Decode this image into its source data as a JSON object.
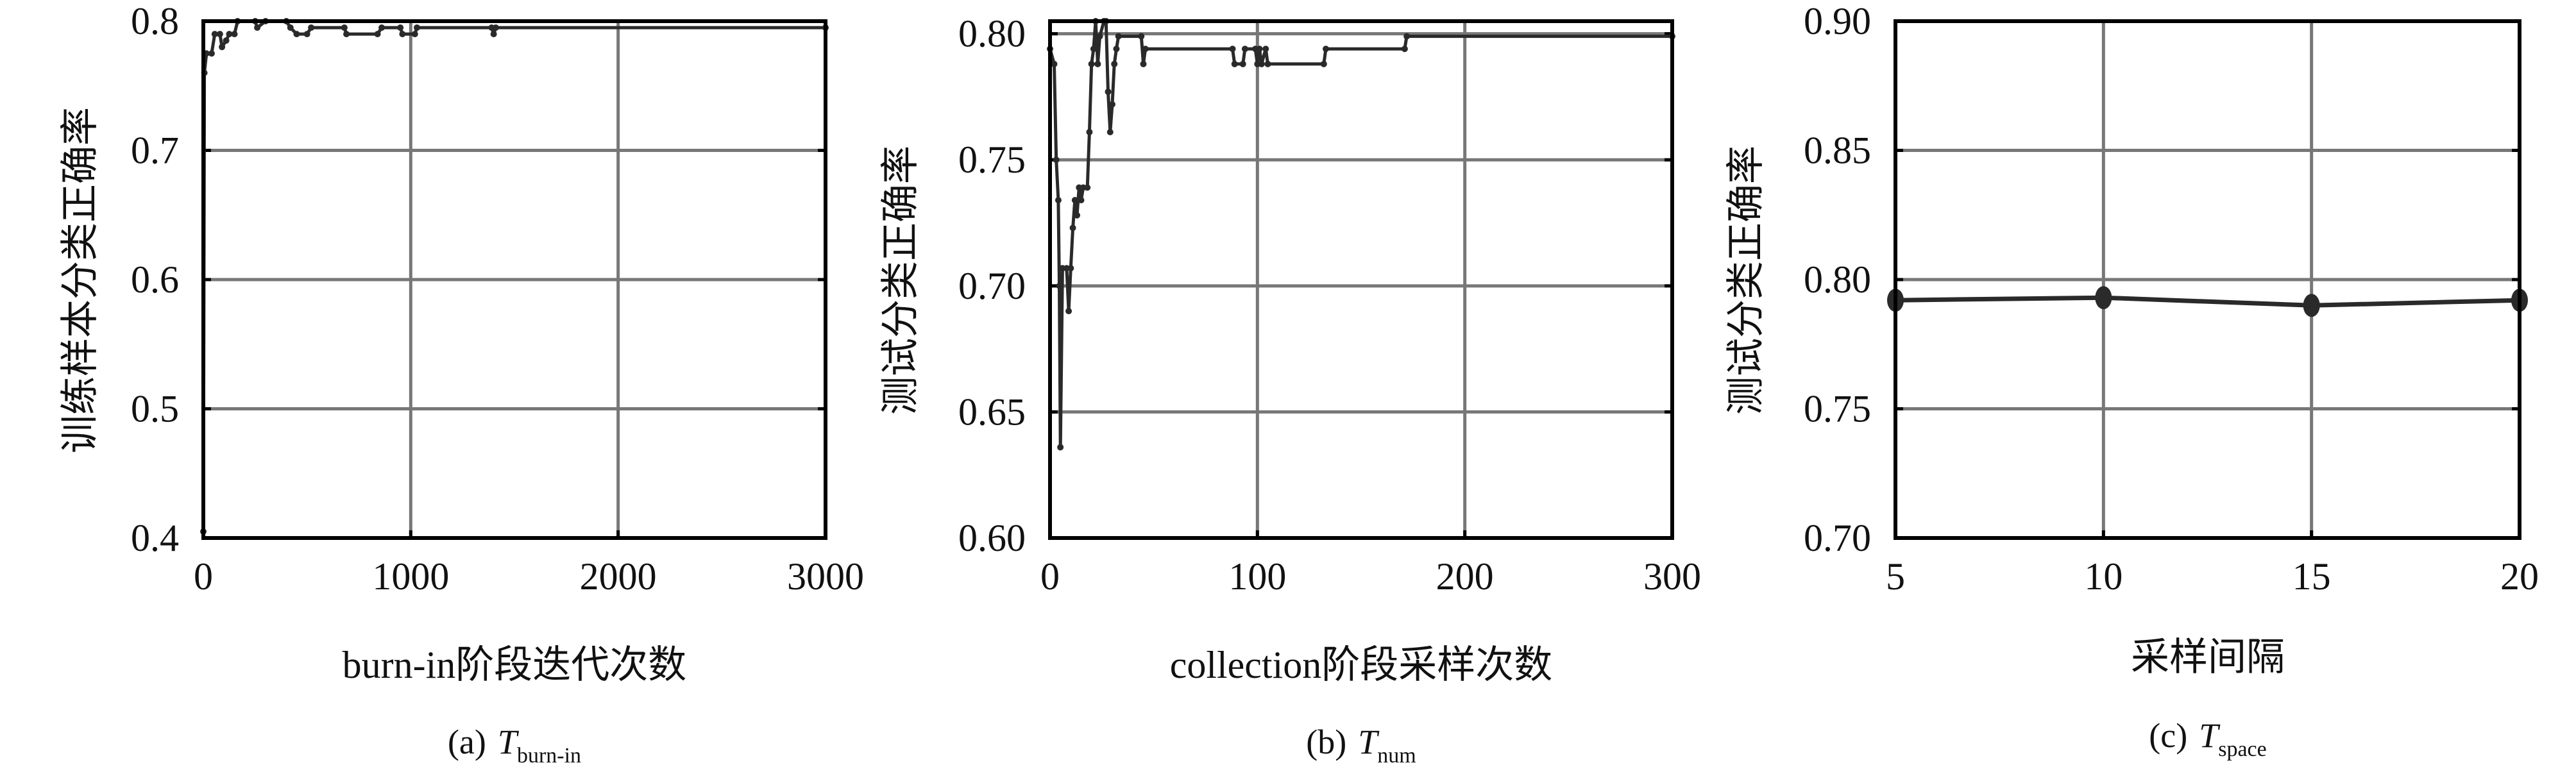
{
  "chart_data": [
    {
      "type": "line",
      "xlabel": "burn-in阶段迭代次数",
      "ylabel": "训练样本分类正确率",
      "caption": {
        "label": "(a)",
        "symbol": "T",
        "subscript": "burn-in"
      },
      "xlim": [
        0,
        3000
      ],
      "ylim": [
        0.4,
        0.8
      ],
      "xticks": [
        0,
        1000,
        2000,
        3000
      ],
      "yticks": [
        0.4,
        0.5,
        0.6,
        0.7,
        0.8
      ],
      "ytick_labels": [
        "0.4",
        "0.5",
        "0.6",
        "0.7",
        "0.8"
      ],
      "grid": true,
      "marker": "small-dot",
      "x": [
        0,
        5,
        15,
        40,
        55,
        80,
        90,
        110,
        125,
        150,
        165,
        250,
        260,
        300,
        400,
        420,
        450,
        500,
        520,
        680,
        690,
        840,
        860,
        950,
        960,
        1020,
        1030,
        1390,
        1400,
        1410,
        3000
      ],
      "y": [
        0.405,
        0.76,
        0.775,
        0.775,
        0.79,
        0.79,
        0.78,
        0.785,
        0.79,
        0.79,
        0.8,
        0.8,
        0.795,
        0.8,
        0.8,
        0.795,
        0.79,
        0.79,
        0.795,
        0.795,
        0.79,
        0.79,
        0.795,
        0.795,
        0.79,
        0.79,
        0.795,
        0.795,
        0.79,
        0.795,
        0.795
      ]
    },
    {
      "type": "line",
      "xlabel": "collection阶段采样次数",
      "ylabel": "测试分类正确率",
      "caption": {
        "label": "(b)",
        "symbol": "T",
        "subscript": "num"
      },
      "xlim": [
        0,
        300
      ],
      "ylim": [
        0.6,
        0.805
      ],
      "xticks": [
        0,
        100,
        200,
        300
      ],
      "yticks": [
        0.6,
        0.65,
        0.7,
        0.75,
        0.8
      ],
      "ytick_labels": [
        "0.60",
        "0.65",
        "0.70",
        "0.75",
        "0.80"
      ],
      "grid": true,
      "marker": "small-dot",
      "x": [
        0,
        2,
        3,
        4,
        4.5,
        5,
        6,
        8,
        9,
        10,
        11,
        12,
        13,
        14,
        15,
        16,
        18,
        19,
        20,
        21,
        22,
        23,
        24,
        26,
        27,
        28,
        29,
        30,
        31,
        32,
        33,
        44,
        45,
        46,
        88,
        89,
        93,
        94,
        99,
        100,
        101,
        102,
        104,
        105,
        132,
        133,
        171,
        172,
        300
      ],
      "y": [
        0.794,
        0.788,
        0.75,
        0.734,
        0.7,
        0.636,
        0.707,
        0.707,
        0.69,
        0.707,
        0.723,
        0.734,
        0.728,
        0.739,
        0.734,
        0.739,
        0.739,
        0.761,
        0.788,
        0.794,
        0.805,
        0.788,
        0.799,
        0.805,
        0.805,
        0.777,
        0.761,
        0.772,
        0.788,
        0.794,
        0.799,
        0.799,
        0.788,
        0.794,
        0.794,
        0.788,
        0.788,
        0.794,
        0.794,
        0.788,
        0.794,
        0.788,
        0.794,
        0.788,
        0.788,
        0.794,
        0.794,
        0.799,
        0.799
      ]
    },
    {
      "type": "line",
      "xlabel": "采样间隔",
      "ylabel": "测试分类正确率",
      "caption": {
        "label": "(c)",
        "symbol": "T",
        "subscript": "space"
      },
      "xlim": [
        5,
        20
      ],
      "ylim": [
        0.7,
        0.9
      ],
      "xticks": [
        5,
        10,
        15,
        20
      ],
      "yticks": [
        0.7,
        0.75,
        0.8,
        0.85,
        0.9
      ],
      "ytick_labels": [
        "0.70",
        "0.75",
        "0.80",
        "0.85",
        "0.90"
      ],
      "grid": true,
      "marker": "large-dot",
      "x": [
        5,
        10,
        15,
        20
      ],
      "y": [
        0.792,
        0.793,
        0.79,
        0.792
      ]
    }
  ],
  "colors": {
    "line": "#2a2a2a",
    "grid": "#777777",
    "frame": "#000000"
  }
}
